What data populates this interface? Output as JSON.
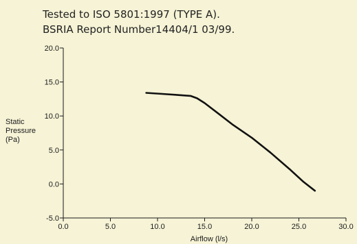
{
  "header": {
    "line1": "Tested to ISO 5801:1997 (TYPE A).",
    "line2": "BSRIA Report Number14404/1 03/99."
  },
  "colors": {
    "background": "#f6f3d6",
    "axis": "#1a1a1a",
    "curve": "#111111"
  },
  "chart_data": {
    "type": "line",
    "xlabel": "Airflow (l/s)",
    "ylabel_lines": [
      "Static",
      "Pressure",
      "(Pa)"
    ],
    "xlim": [
      0,
      30
    ],
    "ylim": [
      -5,
      20
    ],
    "xticks": [
      0,
      5,
      10,
      15,
      20,
      25,
      30
    ],
    "xtick_labels": [
      "0.0",
      "5.0",
      "10.0",
      "15.0",
      "20.0",
      "25.0",
      "30.0"
    ],
    "yticks": [
      -5,
      0,
      5,
      10,
      15,
      20
    ],
    "ytick_labels": [
      "-5.0",
      "0.0",
      "5.0",
      "10.0",
      "15.0",
      "20.0"
    ],
    "grid": false,
    "series": [
      {
        "x": [
          8.8,
          10.5,
          12.0,
          13.5,
          14.2,
          15.0,
          16.5,
          18.0,
          20.0,
          22.0,
          24.0,
          25.5,
          26.7
        ],
        "y": [
          13.4,
          13.25,
          13.1,
          12.95,
          12.6,
          11.9,
          10.3,
          8.7,
          6.8,
          4.6,
          2.2,
          0.3,
          -1.0
        ]
      }
    ]
  }
}
